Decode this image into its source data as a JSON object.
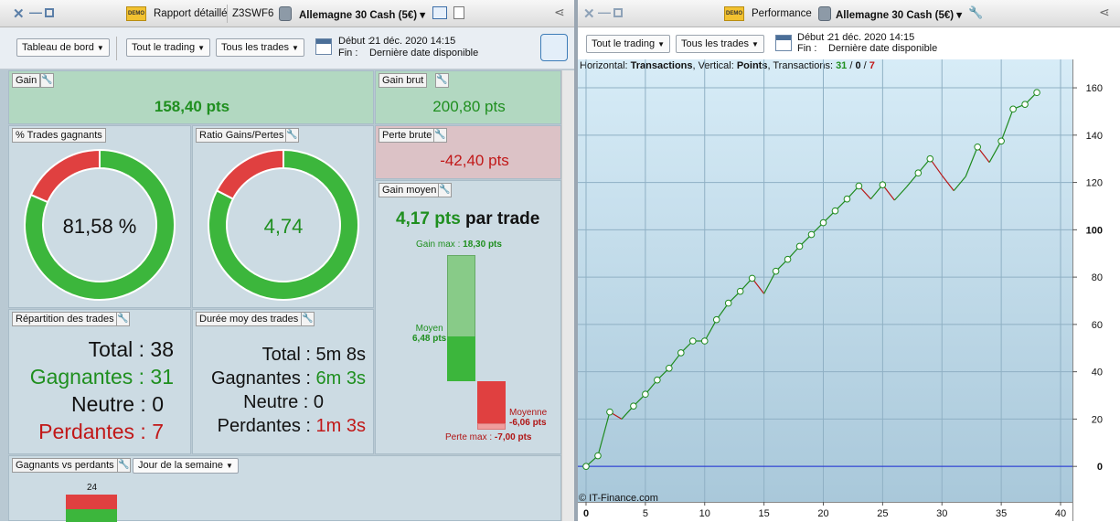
{
  "left_window": {
    "title_tabs": [
      "Rapport détaillé",
      "Z3SWF6",
      "Allemagne 30 Cash (5€)"
    ],
    "demo_badge": "DEMO",
    "toolbar": {
      "dashboard_select": "Tableau de bord",
      "trading_select": "Tout le trading",
      "trades_select": "Tous les trades",
      "debut_label": "Début :",
      "debut_value": "21 déc. 2020 14:15",
      "fin_label": "Fin :",
      "fin_value": "Dernière date disponible"
    },
    "gain": {
      "title": "Gain",
      "value": "158,40 pts"
    },
    "gain_brut": {
      "title": "Gain brut",
      "value": "200,80 pts"
    },
    "perte_brute": {
      "title": "Perte brute",
      "value": "-42,40 pts"
    },
    "pct_trades": {
      "title": "% Trades gagnants",
      "value": "81,58 %",
      "fraction": 0.8158
    },
    "ratio": {
      "title": "Ratio Gains/Pertes",
      "value": "4,74",
      "fraction": 0.8258
    },
    "gain_moyen": {
      "title": "Gain moyen",
      "value": "4,17 pts",
      "suffix": "par trade",
      "gain_max_label": "Gain max :",
      "gain_max_value": "18,30 pts",
      "moyen_label": "Moyen",
      "moyen_value": "6,48 pts",
      "moyenne_label": "Moyenne",
      "moyenne_value": "-6,06 pts",
      "perte_max_label": "Perte max :",
      "perte_max_value": "-7,00 pts",
      "gain_max_num": 18.3,
      "moyen_num": 6.48,
      "perte_max_num": -7.0,
      "moyenne_num": -6.06
    },
    "repartition": {
      "title": "Répartition des trades",
      "total_label": "Total :",
      "total_value": "38",
      "gagnantes_label": "Gagnantes :",
      "gagnantes_value": "31",
      "neutre_label": "Neutre :",
      "neutre_value": "0",
      "perdantes_label": "Perdantes :",
      "perdantes_value": "7"
    },
    "duree": {
      "title": "Durée moy des trades",
      "total_label": "Total :",
      "total_value": "5m 8s",
      "gagnantes_label": "Gagnantes :",
      "gagnantes_value": "6m 3s",
      "neutre_label": "Neutre :",
      "neutre_value": "0",
      "perdantes_label": "Perdantes :",
      "perdantes_value": "1m 3s"
    },
    "gagnants_vs_perdants": {
      "title": "Gagnants vs perdants",
      "period_select": "Jour de la semaine",
      "bar_label": "24"
    }
  },
  "right_window": {
    "title_tabs": [
      "Performance",
      "Allemagne 30 Cash (5€)"
    ],
    "demo_badge": "DEMO",
    "toolbar": {
      "trading_select": "Tout le trading",
      "trades_select": "Tous les trades",
      "debut_label": "Début :",
      "debut_value": "21 déc. 2020 14:15",
      "fin_label": "Fin :",
      "fin_value": "Dernière date disponible"
    },
    "info": {
      "h_label": "Horizontal:",
      "h_value": "Transactions",
      "v_label": "Vertical:",
      "v_value": "Points",
      "t_label": "Transactions:",
      "t_win": "31",
      "t_neutral": "0",
      "t_loss": "7"
    },
    "watermark": "© IT-Finance.com"
  },
  "colors": {
    "win": "#3cb63c",
    "loss": "#e04040",
    "baseline": "#1a2ad6"
  },
  "chart_data": {
    "type": "line",
    "xlabel": "",
    "ylabel": "",
    "xlim": [
      0,
      40
    ],
    "ylim": [
      -15,
      172
    ],
    "x_ticks": [
      0,
      5,
      10,
      15,
      20,
      25,
      30,
      35,
      40
    ],
    "y_ticks": [
      0,
      20,
      40,
      60,
      80,
      100,
      120,
      140,
      160
    ],
    "x": [
      0,
      1,
      2,
      3,
      4,
      5,
      6,
      7,
      8,
      9,
      10,
      11,
      12,
      13,
      14,
      15,
      16,
      17,
      18,
      19,
      20,
      21,
      22,
      23,
      24,
      25,
      26,
      27,
      28,
      29,
      30,
      31,
      32,
      33,
      34,
      35,
      36,
      37,
      38
    ],
    "y": [
      0,
      4.5,
      23,
      20,
      25.5,
      30.5,
      36.5,
      41.5,
      48,
      53,
      53,
      62,
      69,
      74,
      79.5,
      73,
      82.5,
      87.5,
      93,
      98,
      103,
      108,
      113,
      118.5,
      113,
      119,
      112.5,
      118,
      124,
      130,
      123,
      116.5,
      122.5,
      135,
      128.5,
      137.5,
      151,
      153,
      158
    ],
    "markers": [
      1,
      1,
      1,
      0,
      1,
      1,
      1,
      1,
      1,
      1,
      1,
      1,
      1,
      1,
      1,
      0,
      1,
      1,
      1,
      1,
      1,
      1,
      1,
      1,
      0,
      1,
      0,
      0,
      1,
      1,
      0,
      0,
      0,
      1,
      0,
      1,
      1,
      1,
      1
    ]
  }
}
